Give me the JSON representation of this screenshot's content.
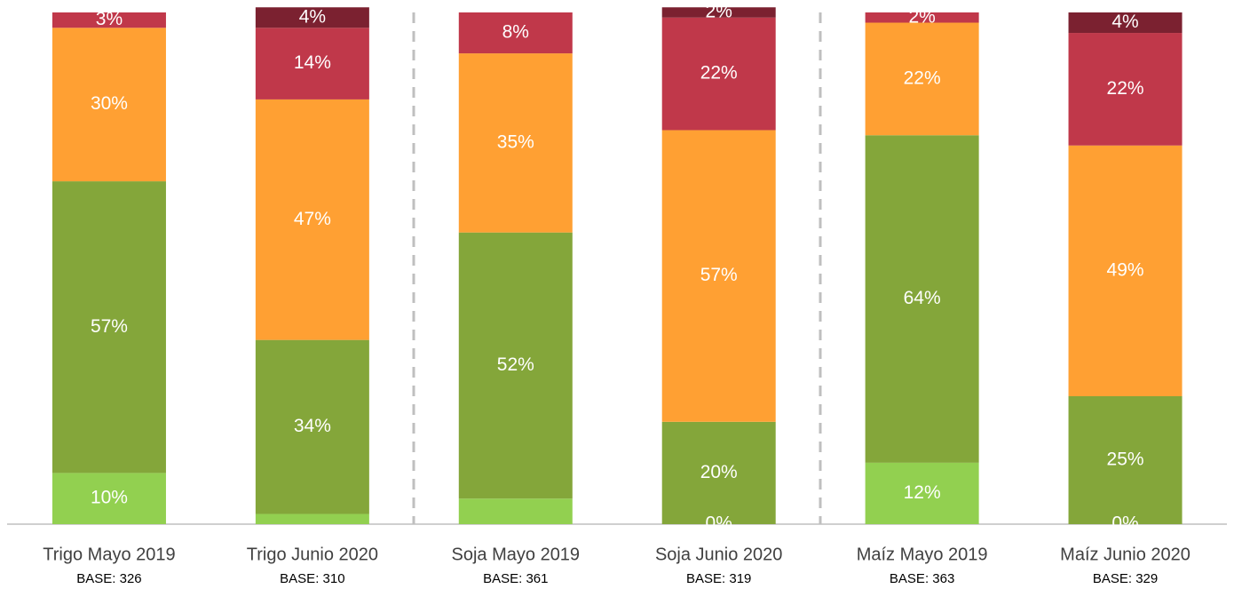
{
  "chart_data": {
    "type": "stacked_bar",
    "categories": [
      "Trigo Mayo 2019",
      "Trigo Junio 2020",
      "Soja Mayo 2019",
      "Soja Junio 2020",
      "Maíz Mayo 2019",
      "Maíz Junio 2020"
    ],
    "bases": [
      "BASE: 326",
      "BASE: 310",
      "BASE: 361",
      "BASE: 319",
      "BASE: 363",
      "BASE: 329"
    ],
    "ylim": [
      0,
      100
    ],
    "series": [
      {
        "color": "#92d050",
        "values": [
          10,
          2,
          5,
          0,
          12,
          0
        ],
        "value_labels": [
          "10%",
          null,
          null,
          "0%",
          "12%",
          "0%"
        ]
      },
      {
        "color": "#84a63a",
        "values": [
          57,
          34,
          52,
          20,
          64,
          25
        ],
        "value_labels": [
          "57%",
          "34%",
          "52%",
          "20%",
          "64%",
          "25%"
        ]
      },
      {
        "color": "#ffa033",
        "values": [
          30,
          47,
          35,
          57,
          22,
          49
        ],
        "value_labels": [
          "30%",
          "47%",
          "35%",
          "57%",
          "22%",
          "49%"
        ]
      },
      {
        "color": "#c0384a",
        "values": [
          3,
          14,
          8,
          22,
          2,
          22
        ],
        "value_labels": [
          "3%",
          "14%",
          "8%",
          "22%",
          "2%",
          "22%"
        ]
      },
      {
        "color": "#7b2130",
        "values": [
          0,
          4,
          0,
          2,
          0,
          4
        ],
        "value_labels": [
          null,
          "4%",
          null,
          "2%",
          null,
          "4%"
        ]
      }
    ]
  }
}
